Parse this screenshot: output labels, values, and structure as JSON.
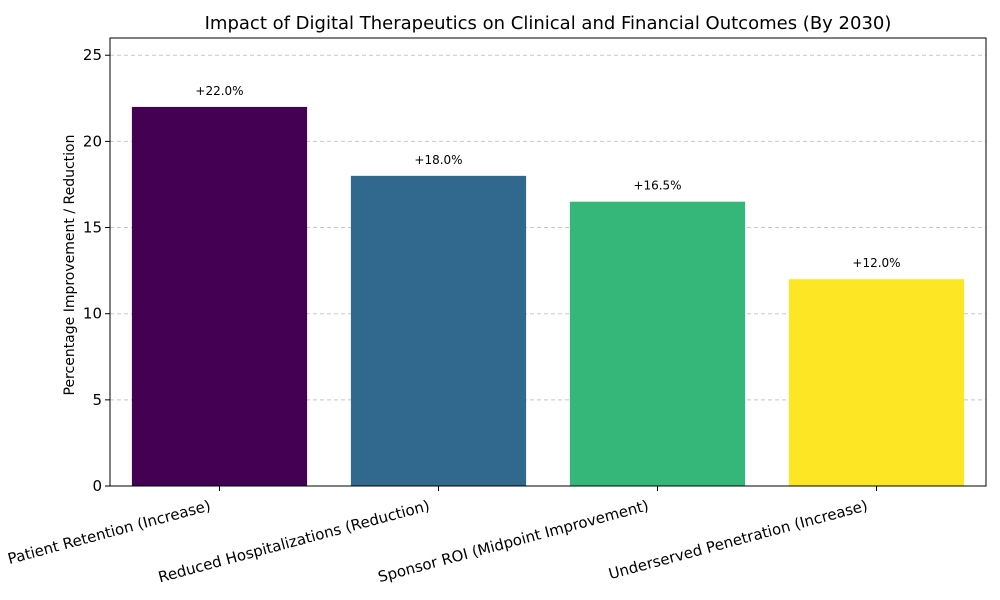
{
  "chart_data": {
    "type": "bar",
    "title": "Impact of Digital Therapeutics on Clinical and Financial Outcomes (By 2030)",
    "xlabel": "",
    "ylabel": "Percentage Improvement / Reduction",
    "categories": [
      "Patient Retention (Increase)",
      "Reduced Hospitalizations (Reduction)",
      "Sponsor ROI (Midpoint Improvement)",
      "Underserved Penetration (Increase)"
    ],
    "values": [
      22.0,
      18.0,
      16.5,
      12.0
    ],
    "data_labels": [
      "+22.0%",
      "+18.0%",
      "+16.5%",
      "+12.0%"
    ],
    "colors": [
      "#440154",
      "#31688e",
      "#35b779",
      "#fde725"
    ],
    "ylim": [
      0,
      26
    ],
    "yticks": [
      0,
      5,
      10,
      15,
      20,
      25
    ],
    "grid": "y-dashed",
    "legend": "none"
  }
}
